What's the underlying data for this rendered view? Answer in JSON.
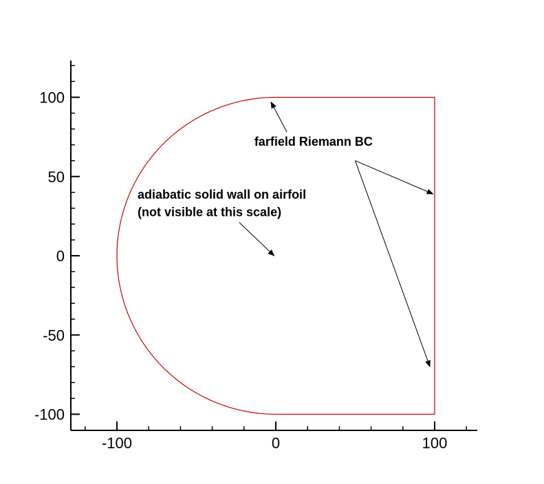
{
  "chart_data": {
    "type": "line",
    "xlim": [
      -130,
      125
    ],
    "ylim": [
      -110,
      123
    ],
    "x_ticks": [
      -100,
      0,
      100
    ],
    "y_ticks": [
      100,
      50,
      0,
      -50,
      -100
    ],
    "x_tick_labels": [
      "-100",
      "0",
      "100"
    ],
    "y_tick_labels": [
      "100",
      "50",
      "0",
      "-50",
      "-100"
    ],
    "x_minor_step": 20,
    "y_minor_step": 10,
    "grid": false,
    "boundary_color": "#cc0000",
    "boundary": {
      "arc": {
        "center": [
          0,
          0
        ],
        "radius": 100,
        "from_deg": 90,
        "to_deg": 270
      },
      "polyline": [
        [
          0,
          100
        ],
        [
          100,
          100
        ],
        [
          100,
          -100
        ],
        [
          0,
          -100
        ]
      ]
    },
    "annotations": [
      {
        "id": "farfield",
        "lines": [
          "farfield Riemann BC"
        ],
        "text_pos": [
          -13.5,
          69.5
        ],
        "arrows": [
          {
            "from": [
              7,
              78
            ],
            "to": [
              -3,
              97
            ]
          },
          {
            "from": [
              50,
              60
            ],
            "to": [
              99,
              39
            ]
          },
          {
            "from": [
              50,
              60
            ],
            "to": [
              97,
              -70
            ]
          }
        ]
      },
      {
        "id": "solidwall",
        "lines": [
          "adiabatic solid wall on airfoil",
          "(not visible at this scale)"
        ],
        "text_pos": [
          -87,
          36
        ],
        "line_step": 11,
        "arrows": [
          {
            "from": [
              -23,
              21
            ],
            "to": [
              -1,
              0
            ]
          }
        ]
      }
    ]
  }
}
